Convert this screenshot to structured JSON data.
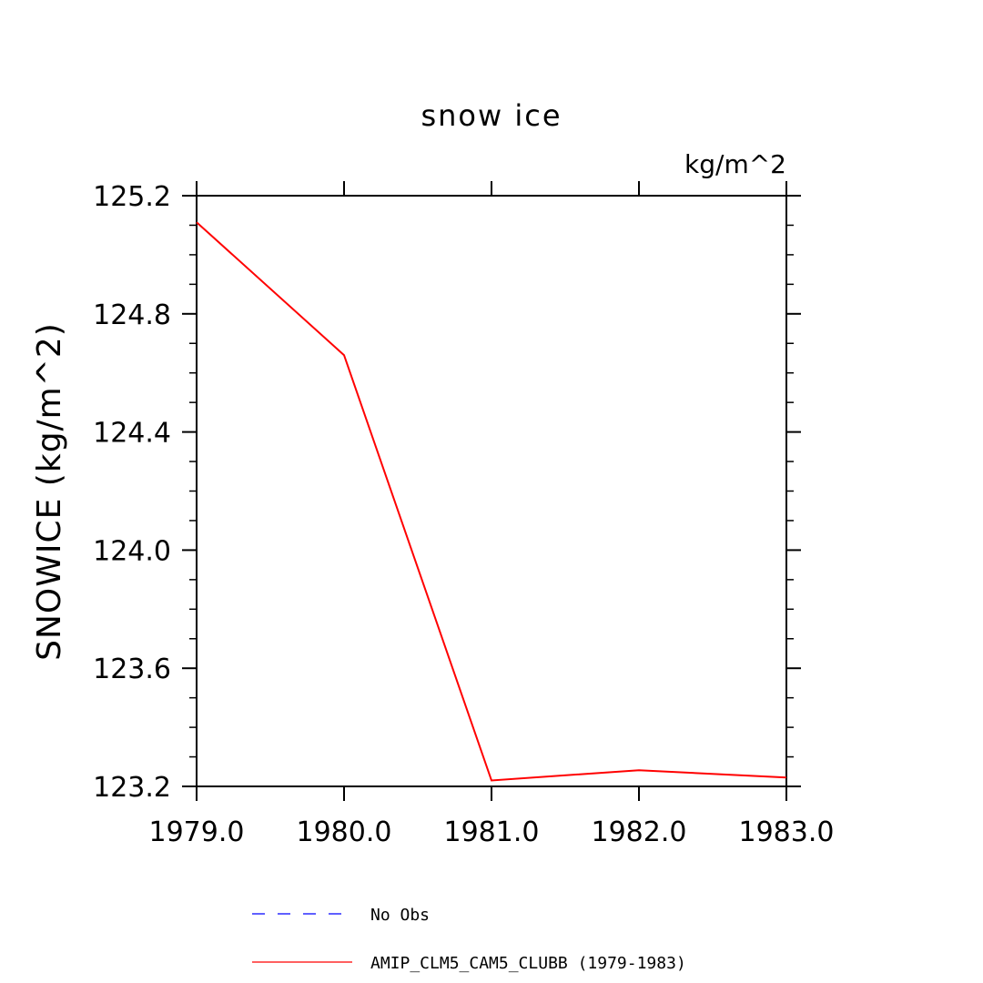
{
  "chart_data": {
    "type": "line",
    "title": "snow ice",
    "units": "kg/m^2",
    "ylabel": "SNOWICE  (kg/m^2)",
    "xlabel": "",
    "xlim": [
      1979.0,
      1983.0
    ],
    "ylim": [
      123.2,
      125.2
    ],
    "x_ticks": [
      "1979.0",
      "1980.0",
      "1981.0",
      "1982.0",
      "1983.0"
    ],
    "y_ticks": [
      "123.2",
      "123.6",
      "124.0",
      "124.4",
      "124.8",
      "125.2"
    ],
    "x_tick_values": [
      1979.0,
      1980.0,
      1981.0,
      1982.0,
      1983.0
    ],
    "y_tick_values": [
      123.2,
      123.6,
      124.0,
      124.4,
      124.8,
      125.2
    ],
    "y_minor_step": 0.1,
    "grid": false,
    "legend_position": "bottom",
    "series": [
      {
        "name": "No Obs",
        "color": "#0000ff",
        "dash": "dashed",
        "x": [],
        "values": []
      },
      {
        "name": "AMIP_CLM5_CAM5_CLUBB (1979-1983)",
        "color": "#ff0000",
        "dash": "solid",
        "x": [
          1979.0,
          1980.0,
          1981.0,
          1982.0,
          1983.0
        ],
        "values": [
          125.11,
          124.66,
          123.22,
          123.255,
          123.23
        ]
      }
    ]
  }
}
